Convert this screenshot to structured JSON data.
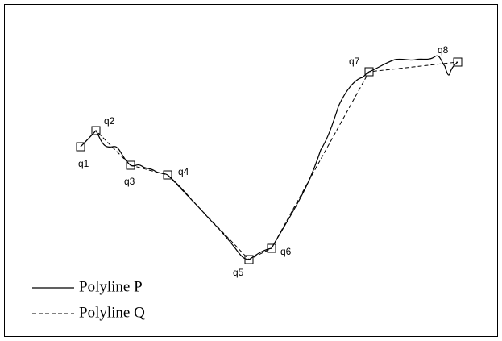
{
  "nodes": [
    {
      "label": "q1"
    },
    {
      "label": "q2"
    },
    {
      "label": "q3"
    },
    {
      "label": "q4"
    },
    {
      "label": "q5"
    },
    {
      "label": "q6"
    },
    {
      "label": "q7"
    },
    {
      "label": "q8"
    }
  ],
  "legend": {
    "p": "Polyline P",
    "q": "Polyline Q"
  }
}
